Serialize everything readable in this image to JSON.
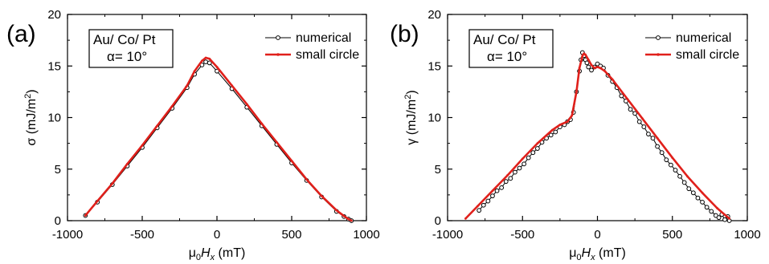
{
  "chart_data": [
    {
      "type": "line",
      "panel_label": "(a)",
      "xlabel": {
        "base": "μ",
        "sub1": "0",
        "italic": "H",
        "sub2": "x",
        "unit": " (mT)"
      },
      "ylabel": {
        "sym": "σ",
        "unit": " (mJ/m",
        "sup": "2",
        "close": ")"
      },
      "xlim": [
        -1000,
        1000
      ],
      "ylim": [
        0,
        20
      ],
      "xticks": [
        -1000,
        -500,
        0,
        500,
        1000
      ],
      "yticks": [
        0,
        5,
        10,
        15,
        20
      ],
      "annotation": [
        "Au/ Co/ Pt",
        "α= 10°"
      ],
      "legend_position": "top-right",
      "series": [
        {
          "name": "numerical",
          "color": "#000000",
          "marker": "open-circle",
          "x": [
            -880,
            -800,
            -700,
            -600,
            -500,
            -400,
            -300,
            -200,
            -150,
            -100,
            -75,
            -50,
            0,
            100,
            200,
            300,
            400,
            500,
            600,
            700,
            800,
            850,
            880,
            900
          ],
          "y": [
            0.5,
            1.8,
            3.5,
            5.3,
            7.1,
            9.0,
            10.9,
            12.9,
            14.2,
            15.1,
            15.4,
            15.3,
            14.5,
            12.8,
            11.0,
            9.2,
            7.4,
            5.6,
            3.9,
            2.3,
            0.9,
            0.4,
            0.15,
            0.0
          ]
        },
        {
          "name": "small circle",
          "color": "#e0201b",
          "marker": "dot",
          "x": [
            -880,
            -800,
            -700,
            -600,
            -500,
            -400,
            -300,
            -200,
            -150,
            -100,
            -75,
            -50,
            0,
            100,
            200,
            300,
            400,
            500,
            600,
            700,
            800,
            850,
            880,
            900
          ],
          "y": [
            0.5,
            1.9,
            3.6,
            5.5,
            7.3,
            9.2,
            11.1,
            13.1,
            14.5,
            15.5,
            15.8,
            15.7,
            14.9,
            13.1,
            11.3,
            9.4,
            7.6,
            5.8,
            4.0,
            2.4,
            1.0,
            0.45,
            0.15,
            0.0
          ]
        }
      ]
    },
    {
      "type": "line",
      "panel_label": "(b)",
      "xlabel": {
        "base": "μ",
        "sub1": "0",
        "italic": "H",
        "sub2": "x",
        "unit": " (mT)"
      },
      "ylabel": {
        "sym": "γ",
        "unit": " (mJ/m",
        "sup": "2",
        "close": ")"
      },
      "xlim": [
        -1000,
        1000
      ],
      "ylim": [
        0,
        20
      ],
      "xticks": [
        -1000,
        -500,
        0,
        500,
        1000
      ],
      "yticks": [
        0,
        5,
        10,
        15,
        20
      ],
      "annotation": [
        "Au/ Co/ Pt",
        "α= 10°"
      ],
      "legend_position": "top-right",
      "series": [
        {
          "name": "numerical",
          "color": "#000000",
          "marker": "open-circle",
          "x": [
            -790,
            -760,
            -730,
            -700,
            -670,
            -640,
            -610,
            -580,
            -550,
            -520,
            -490,
            -460,
            -430,
            -400,
            -370,
            -340,
            -310,
            -280,
            -250,
            -220,
            -200,
            -180,
            -160,
            -140,
            -120,
            -110,
            -100,
            -90,
            -80,
            -70,
            -60,
            -40,
            -20,
            0,
            20,
            40,
            70,
            100,
            130,
            160,
            190,
            220,
            250,
            280,
            310,
            340,
            370,
            400,
            430,
            460,
            490,
            520,
            550,
            580,
            610,
            640,
            670,
            700,
            730,
            760,
            790,
            810,
            830,
            850,
            870,
            880
          ],
          "y": [
            1.0,
            1.5,
            1.9,
            2.4,
            2.9,
            3.2,
            3.8,
            4.1,
            4.7,
            5.1,
            5.5,
            6.1,
            6.6,
            7.0,
            7.6,
            8.0,
            8.3,
            8.6,
            9.1,
            9.3,
            9.6,
            9.8,
            10.5,
            12.5,
            14.5,
            15.6,
            16.3,
            16.0,
            15.6,
            15.3,
            14.9,
            14.6,
            14.9,
            15.2,
            15.0,
            14.8,
            14.1,
            13.5,
            12.9,
            12.1,
            11.6,
            10.8,
            10.4,
            9.6,
            9.1,
            8.4,
            8.0,
            7.2,
            6.6,
            5.9,
            5.4,
            4.9,
            4.3,
            3.7,
            3.1,
            2.7,
            2.2,
            1.8,
            1.3,
            0.9,
            0.5,
            0.3,
            0.6,
            0.1,
            0.4,
            0.0
          ]
        },
        {
          "name": "small circle",
          "color": "#e0201b",
          "marker": "dot",
          "x": [
            -880,
            -800,
            -700,
            -600,
            -500,
            -400,
            -300,
            -250,
            -200,
            -170,
            -140,
            -120,
            -100,
            -90,
            -80,
            -60,
            -40,
            -20,
            0,
            20,
            50,
            100,
            200,
            300,
            400,
            500,
            600,
            700,
            800,
            880
          ],
          "y": [
            0.2,
            1.4,
            2.9,
            4.4,
            6.0,
            7.5,
            8.8,
            9.3,
            9.6,
            10.2,
            12.5,
            14.8,
            16.0,
            16.2,
            16.1,
            15.6,
            15.1,
            14.8,
            14.9,
            14.8,
            14.5,
            13.7,
            11.8,
            9.9,
            8.0,
            6.1,
            4.3,
            2.7,
            1.2,
            0.2
          ]
        }
      ]
    }
  ]
}
